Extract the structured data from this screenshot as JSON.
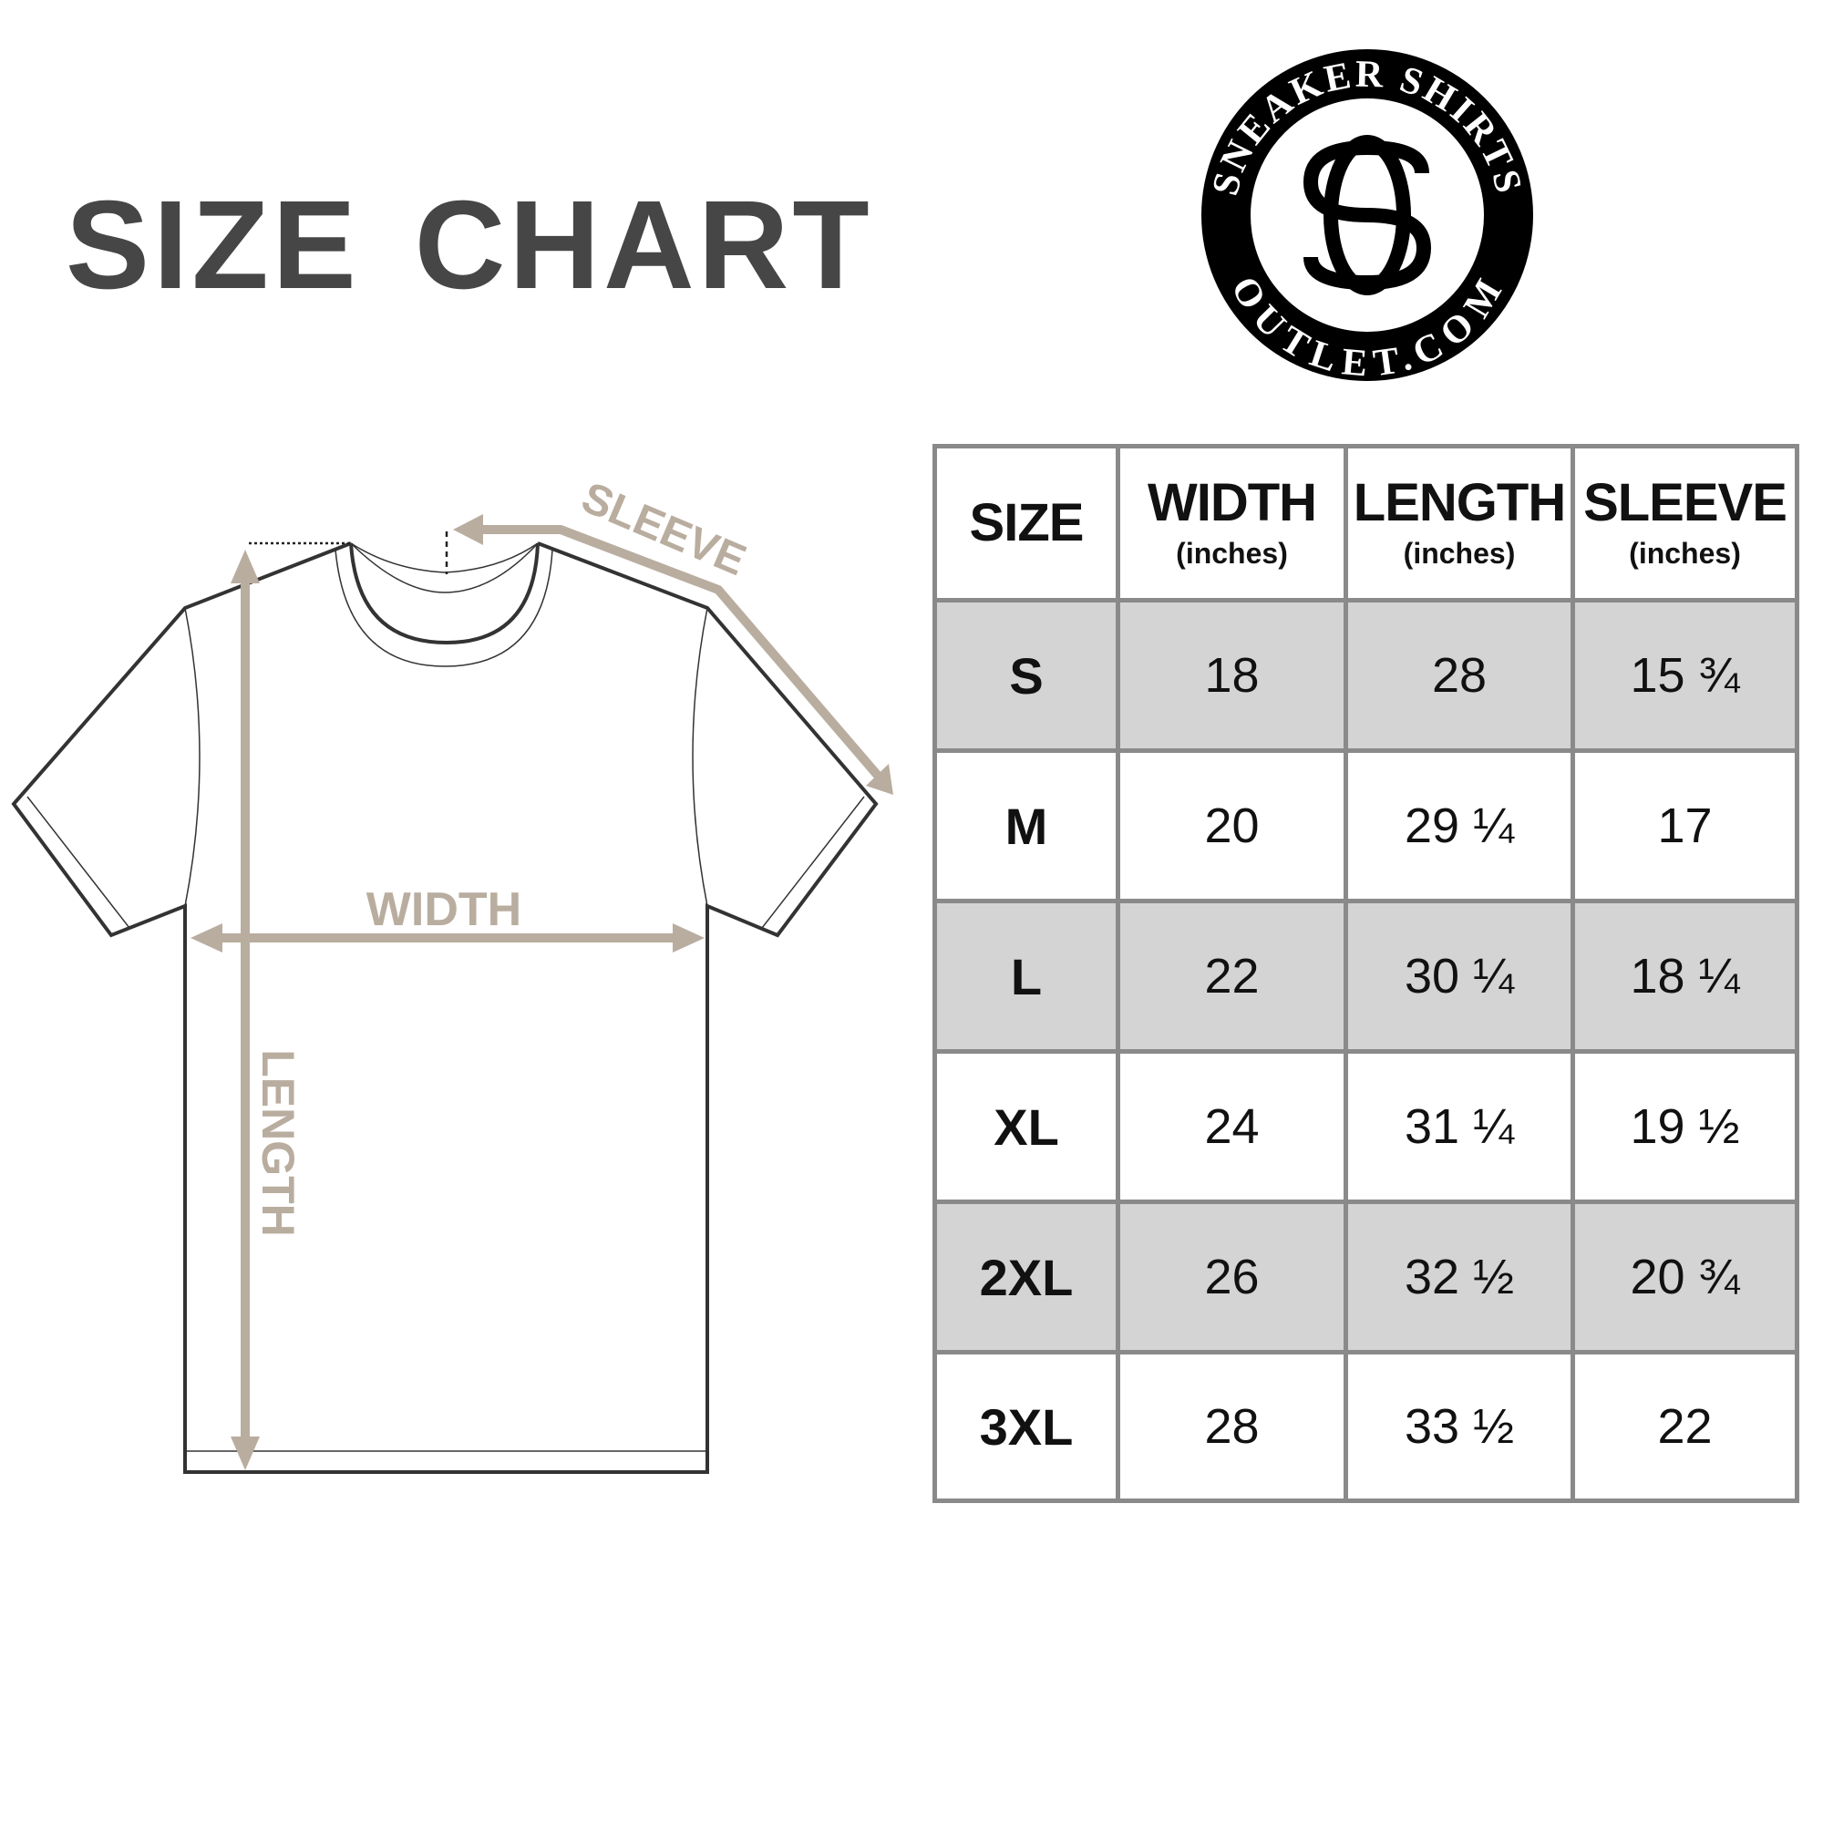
{
  "title": {
    "word1": "SIZE",
    "word2": "CHART"
  },
  "logo": {
    "top_text": "SNEAKER SHIRTS",
    "bottom_text": "OUTLET.COM",
    "monogram": "SO"
  },
  "diagram": {
    "sleeve_label": "SLEEVE",
    "width_label": "WIDTH",
    "length_label": "LENGTH"
  },
  "colors": {
    "accent_tan": "#b9ad9f",
    "row_shade": "#d4d4d4",
    "border": "#8a8a8a",
    "title": "#464646"
  },
  "table": {
    "headers": [
      {
        "label": "SIZE",
        "unit": ""
      },
      {
        "label": "WIDTH",
        "unit": "(inches)"
      },
      {
        "label": "LENGTH",
        "unit": "(inches)"
      },
      {
        "label": "SLEEVE",
        "unit": "(inches)"
      }
    ],
    "rows": [
      [
        "S",
        "18",
        "28",
        "15 ¾"
      ],
      [
        "M",
        "20",
        "29 ¼",
        "17"
      ],
      [
        "L",
        "22",
        "30 ¼",
        "18 ¼"
      ],
      [
        "XL",
        "24",
        "31 ¼",
        "19 ½"
      ],
      [
        "2XL",
        "26",
        "32 ½",
        "20 ¾"
      ],
      [
        "3XL",
        "28",
        "33 ½",
        "22"
      ]
    ]
  }
}
